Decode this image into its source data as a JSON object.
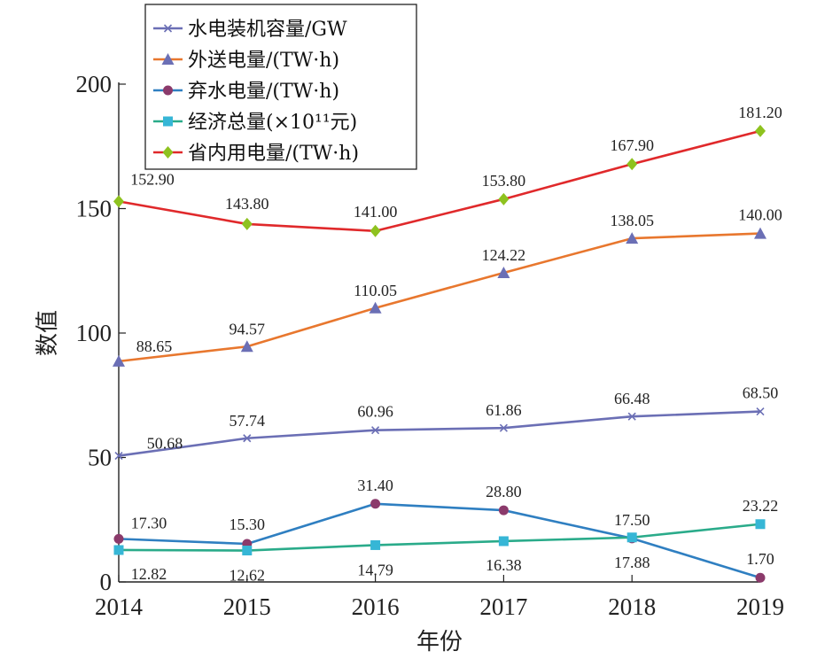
{
  "chart_data": {
    "type": "line",
    "xlabel": "年份",
    "ylabel": "数值",
    "x": [
      "2014",
      "2015",
      "2016",
      "2017",
      "2018",
      "2019"
    ],
    "ylim": [
      0,
      200
    ],
    "yticks": [
      "0",
      "50",
      "100",
      "150",
      "200"
    ],
    "legend_position": "top-left",
    "grid": false,
    "series": [
      {
        "name": "水电装机容量/GW",
        "color": "#6b6fb5",
        "marker": "x",
        "values": [
          50.68,
          57.74,
          60.96,
          61.86,
          66.48,
          68.5
        ],
        "labels": [
          "50.68",
          "57.74",
          "60.96",
          "61.86",
          "66.48",
          "68.50"
        ]
      },
      {
        "name": "外送电量/(TW·h)",
        "color": "#e8772e",
        "marker": "triangle",
        "marker_color": "#6b6fb5",
        "values": [
          88.65,
          94.57,
          110.05,
          124.22,
          138.05,
          140.0
        ],
        "labels": [
          "88.65",
          "94.57",
          "110.05",
          "124.22",
          "138.05",
          "140.00"
        ]
      },
      {
        "name": "弃水电量/(TW·h)",
        "color": "#2f7fc1",
        "marker": "circle",
        "marker_color": "#8b3a6b",
        "values": [
          17.3,
          15.3,
          31.4,
          28.8,
          17.5,
          1.7
        ],
        "labels": [
          "17.30",
          "15.30",
          "31.40",
          "28.80",
          "17.50",
          "1.70"
        ]
      },
      {
        "name": "经济总量(×10¹¹元)",
        "color": "#2aab8a",
        "marker": "square",
        "marker_color": "#36b6d6",
        "values": [
          12.82,
          12.62,
          14.79,
          16.38,
          17.88,
          23.22
        ],
        "labels": [
          "12.82",
          "12.62",
          "14.79",
          "16.38",
          "17.88",
          "23.22"
        ]
      },
      {
        "name": "省内用电量/(TW·h)",
        "color": "#e0292b",
        "marker": "diamond",
        "marker_color": "#8ec21f",
        "values": [
          152.9,
          143.8,
          141.0,
          153.8,
          167.9,
          181.2
        ],
        "labels": [
          "152.90",
          "143.80",
          "141.00",
          "153.80",
          "167.90",
          "181.20"
        ]
      }
    ]
  }
}
